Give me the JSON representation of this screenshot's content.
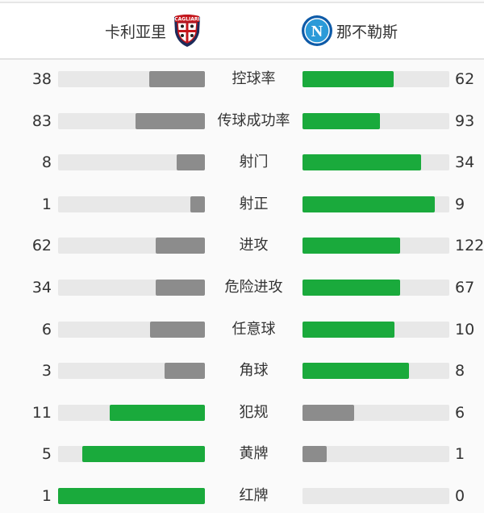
{
  "header": {
    "home_team": "卡利亚里",
    "away_team": "那不勒斯",
    "home_logo_text": "CAGLIARI",
    "away_logo_text": "N"
  },
  "colors": {
    "winner": "#1aaa3c",
    "loser": "#8c8c8c",
    "track": "#e8e8e8"
  },
  "stats": [
    {
      "label": "控球率",
      "home": "38",
      "away": "62"
    },
    {
      "label": "传球成功率",
      "home": "83",
      "away": "93"
    },
    {
      "label": "射门",
      "home": "8",
      "away": "34"
    },
    {
      "label": "射正",
      "home": "1",
      "away": "9"
    },
    {
      "label": "进攻",
      "home": "62",
      "away": "122"
    },
    {
      "label": "危险进攻",
      "home": "34",
      "away": "67"
    },
    {
      "label": "任意球",
      "home": "6",
      "away": "10"
    },
    {
      "label": "角球",
      "home": "3",
      "away": "8"
    },
    {
      "label": "犯规",
      "home": "11",
      "away": "6"
    },
    {
      "label": "黄牌",
      "home": "5",
      "away": "1"
    },
    {
      "label": "红牌",
      "home": "1",
      "away": "0"
    }
  ]
}
